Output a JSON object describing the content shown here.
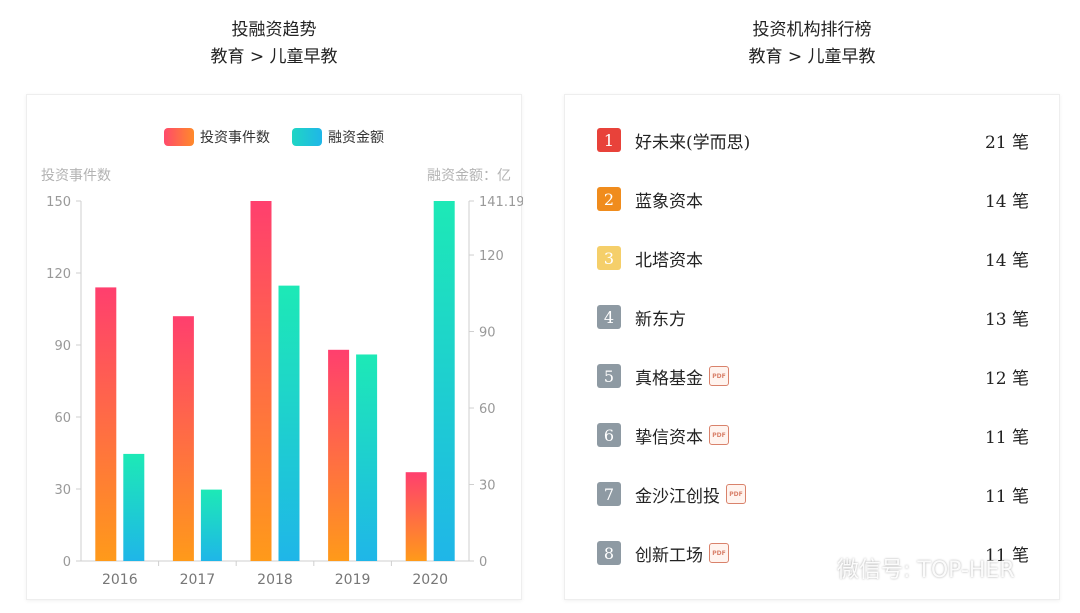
{
  "left_panel": {
    "title": "投融资趋势",
    "subtitle": "教育 > 儿童早教"
  },
  "right_panel": {
    "title": "投资机构排行榜",
    "subtitle": "教育 > 儿童早教"
  },
  "chart_data": {
    "type": "bar",
    "categories": [
      "2016",
      "2017",
      "2018",
      "2019",
      "2020"
    ],
    "series": [
      {
        "name": "投资事件数",
        "axis": "left",
        "values": [
          114,
          102,
          150,
          88,
          37
        ]
      },
      {
        "name": "融资金额",
        "axis": "right",
        "values": [
          42,
          28,
          108,
          81,
          141.19
        ]
      }
    ],
    "ylabel": "投资事件数",
    "ylabel_right": "融资金额：亿",
    "ylim": [
      0,
      150
    ],
    "ylim_right": [
      0,
      141.19
    ],
    "yticks": [
      "0",
      "30",
      "60",
      "90",
      "120",
      "150"
    ],
    "yticks_right": [
      "0",
      "30",
      "60",
      "90",
      "120",
      "141.19"
    ],
    "legend": "top-center",
    "colors": {
      "events_top": "#ff3f6e",
      "events_bottom": "#ff9a1a",
      "amount_top": "#1de9b6",
      "amount_bottom": "#1fb6e8"
    }
  },
  "ranking": [
    {
      "rank": "1",
      "name": "好未来(学而思)",
      "count": "21 笔",
      "badge_color": "#e8423a",
      "pdf": false
    },
    {
      "rank": "2",
      "name": "蓝象资本",
      "count": "14 笔",
      "badge_color": "#f08c1d",
      "pdf": false
    },
    {
      "rank": "3",
      "name": "北塔资本",
      "count": "14 笔",
      "badge_color": "#f5cf6a",
      "pdf": false
    },
    {
      "rank": "4",
      "name": "新东方",
      "count": "13 笔",
      "badge_color": "#8e9aa3",
      "pdf": false
    },
    {
      "rank": "5",
      "name": "真格基金",
      "count": "12 笔",
      "badge_color": "#8e9aa3",
      "pdf": true
    },
    {
      "rank": "6",
      "name": "挚信资本",
      "count": "11 笔",
      "badge_color": "#8e9aa3",
      "pdf": true
    },
    {
      "rank": "7",
      "name": "金沙江创投",
      "count": "11 笔",
      "badge_color": "#8e9aa3",
      "pdf": true
    },
    {
      "rank": "8",
      "name": "创新工场",
      "count": "11 笔",
      "badge_color": "#8e9aa3",
      "pdf": true
    }
  ],
  "pdf_icon_label": "PDF",
  "watermark": "微信号: TOP-HER"
}
